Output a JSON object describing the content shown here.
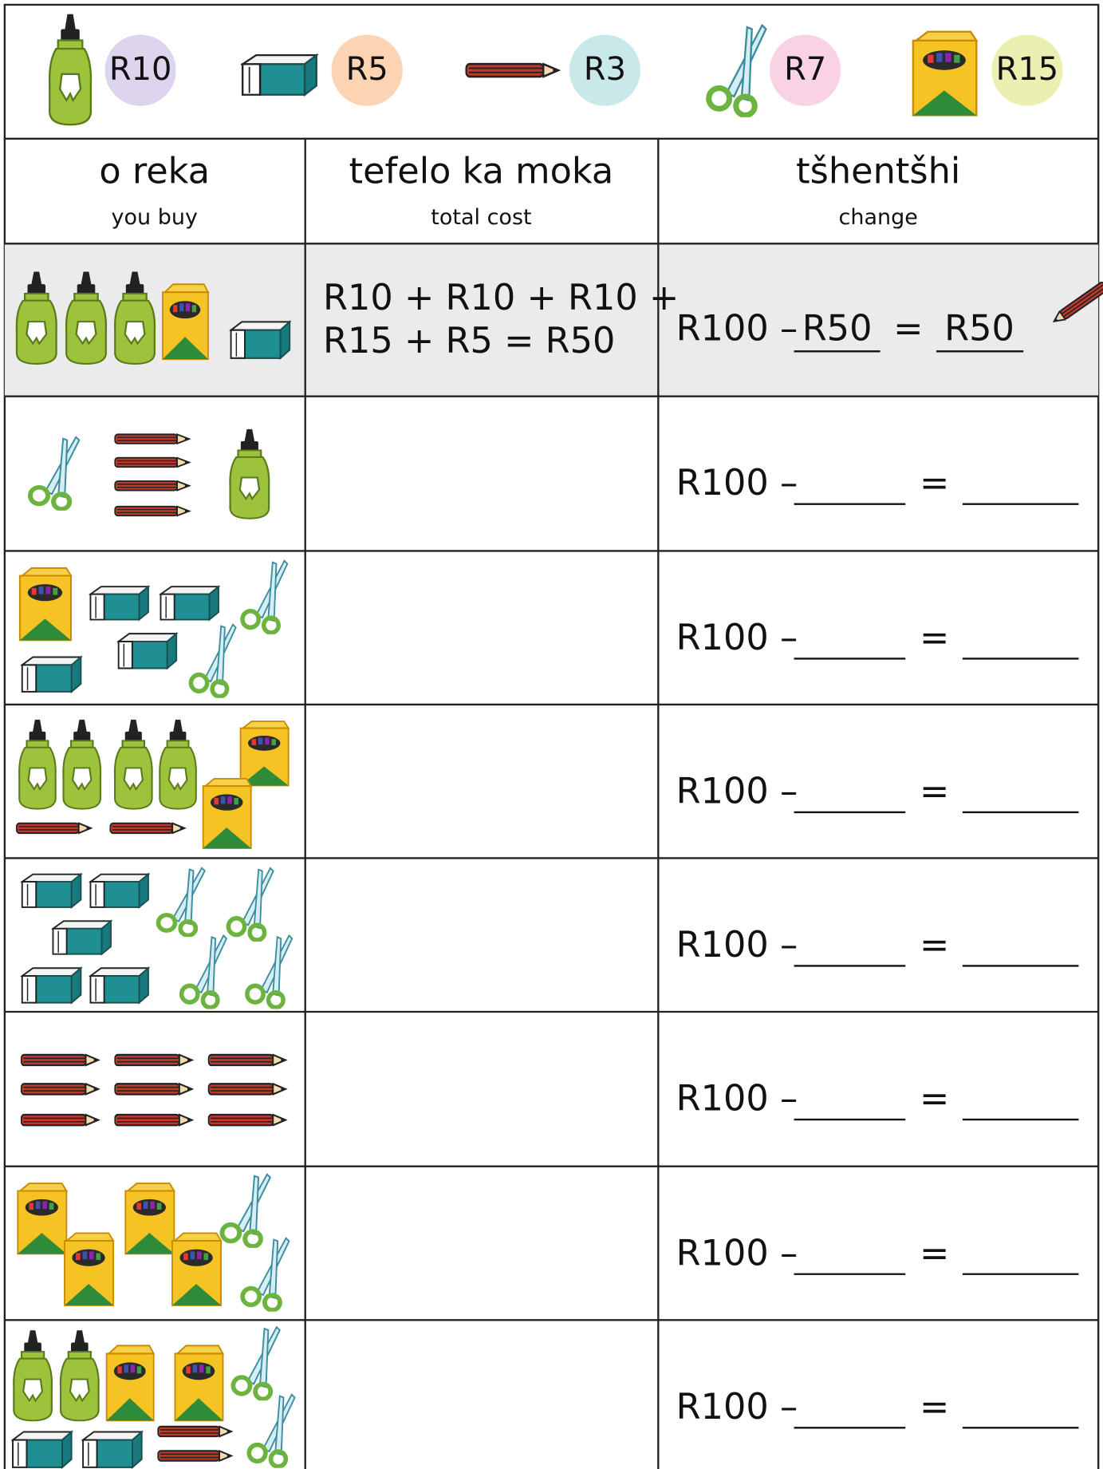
{
  "price_list": [
    {
      "price": "R10"
    },
    {
      "price": "R5"
    },
    {
      "price": "R3"
    },
    {
      "price": "R7"
    },
    {
      "price": "R15"
    }
  ],
  "table": {
    "header": [
      {
        "title": "o reka",
        "subtitle": "you buy"
      },
      {
        "title": "tefelo ka moka",
        "subtitle": "total cost"
      },
      {
        "title": "tšhentšhi",
        "subtitle": "change"
      }
    ],
    "example": {
      "total_cost": [
        "R10 + R10 + R10 +",
        "R15 + R5 = R50"
      ],
      "change": {
        "start": "R100 –",
        "amount": "R50",
        "equals": "=",
        "result": "R50"
      }
    },
    "rows": [
      {
        "change": {
          "start": "R100 –",
          "equals": "="
        }
      },
      {
        "change": {
          "start": "R100 –",
          "equals": "="
        }
      },
      {
        "change": {
          "start": "R100 –",
          "equals": "="
        }
      },
      {
        "change": {
          "start": "R100 –",
          "equals": "="
        }
      },
      {
        "change": {
          "start": "R100 –",
          "equals": "="
        }
      },
      {
        "change": {
          "start": "R100 –",
          "equals": "="
        }
      },
      {
        "change": {
          "start": "R100 –",
          "equals": "="
        }
      }
    ]
  }
}
